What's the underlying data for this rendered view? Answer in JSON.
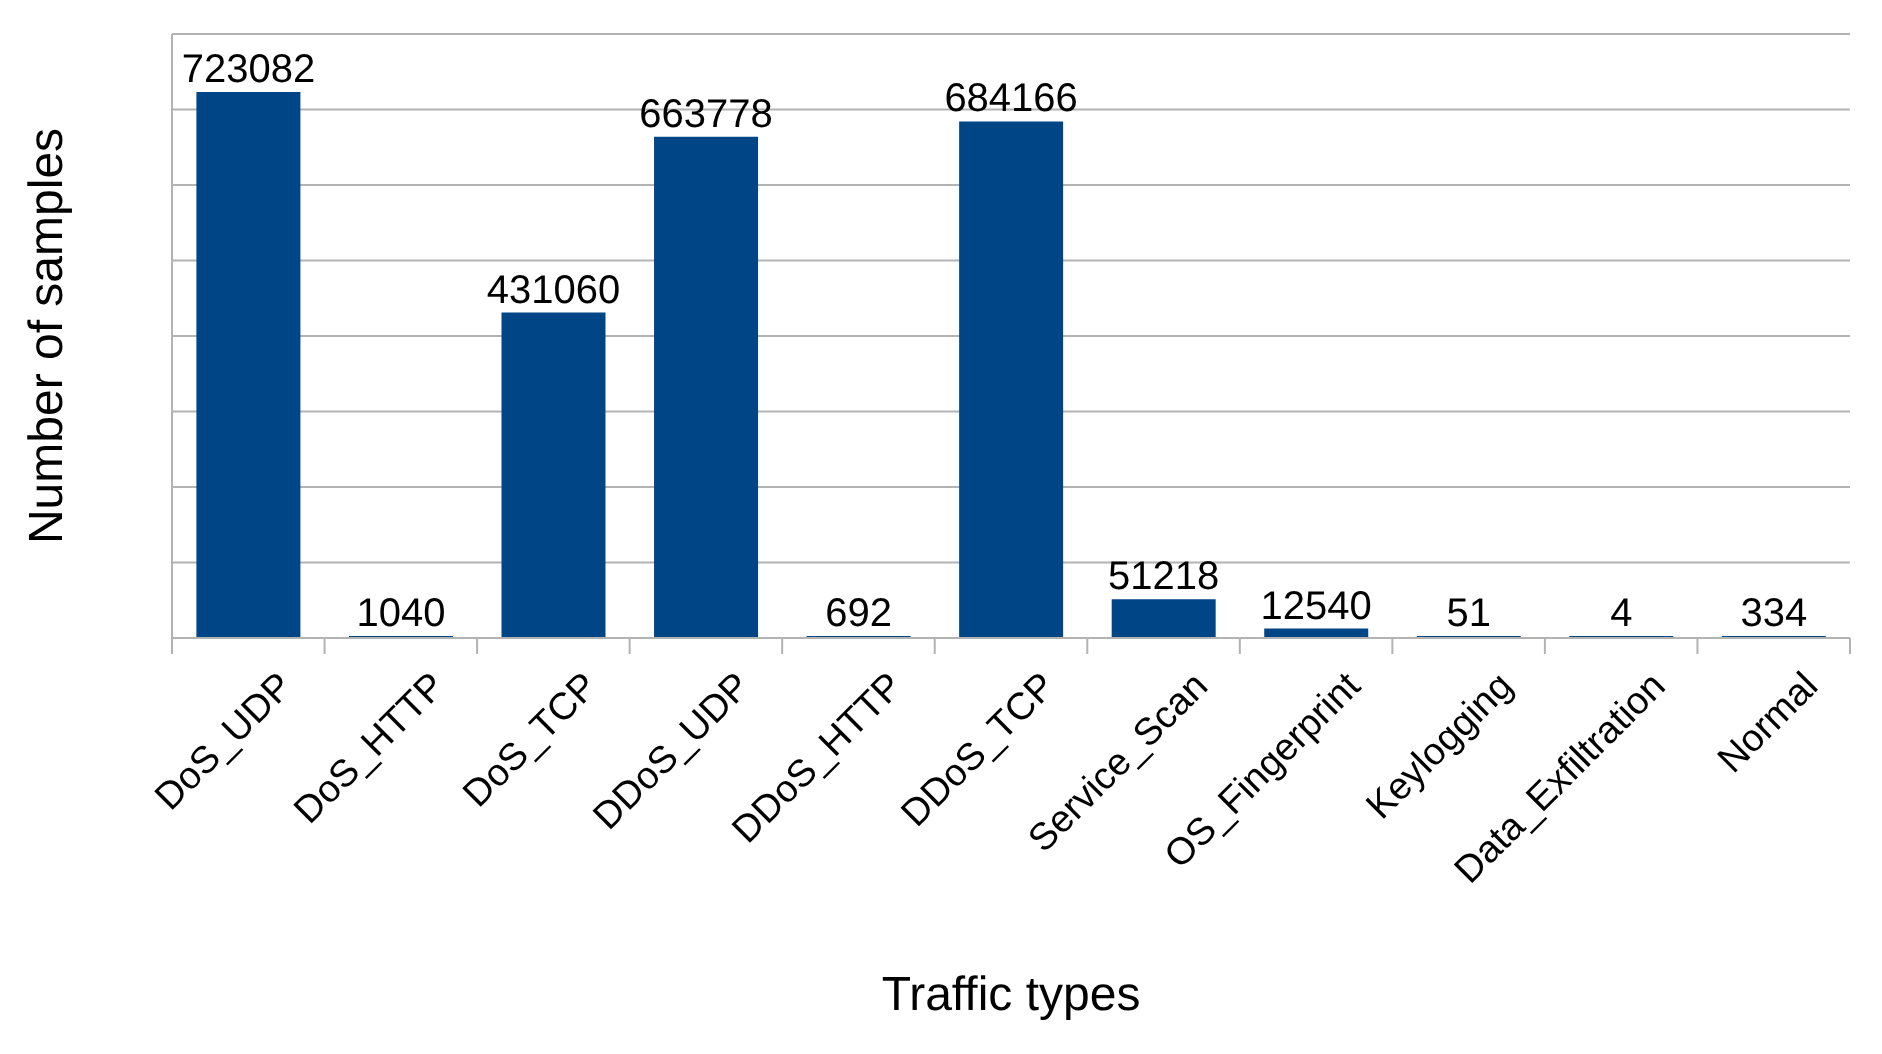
{
  "chart_data": {
    "type": "bar",
    "xlabel": "Traffic types",
    "ylabel": "Number of samples",
    "categories": [
      "DoS_UDP",
      "DoS_HTTP",
      "DoS_TCP",
      "DDoS_UDP",
      "DDoS_HTTP",
      "DDoS_TCP",
      "Service_Scan",
      "OS_Fingerprint",
      "Keylogging",
      "Data_Exfiltration",
      "Normal"
    ],
    "values": [
      723082,
      1040,
      431060,
      663778,
      692,
      684166,
      51218,
      12540,
      51,
      4,
      334
    ],
    "color": "#004586",
    "data_labels": true,
    "grid": "y",
    "tick_labels": "x",
    "ylim": [
      0,
      800000
    ],
    "yticks": [
      {
        "value": 0,
        "label": null
      },
      {
        "value": 100000,
        "label": null
      },
      {
        "value": 200000,
        "label": null
      },
      {
        "value": 300000,
        "label": null
      },
      {
        "value": 400000,
        "label": null
      },
      {
        "value": 500000,
        "label": null
      },
      {
        "value": 600000,
        "label": null
      },
      {
        "value": 700000,
        "label": null
      },
      {
        "value": 800000,
        "label": null
      }
    ]
  }
}
